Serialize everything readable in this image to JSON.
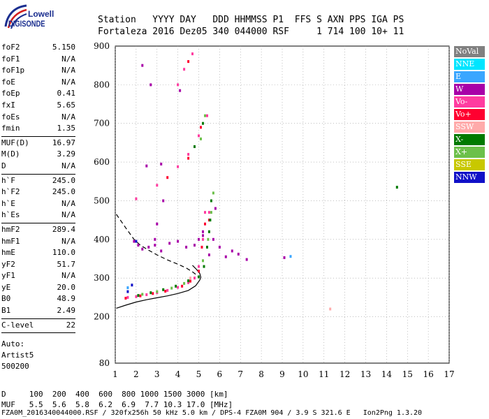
{
  "logo": {
    "line1": "Lowell",
    "line2": "DIGISONDE"
  },
  "header": {
    "line1": "Station   YYYY DAY   DDD HHMMSS P1  FFS S AXN PPS IGA PS",
    "line2": "Fortaleza 2016 Dez05 340 044000 RSF     1 714 100 10+ 11"
  },
  "params": {
    "group1": [
      {
        "name": "foF2",
        "value": "5.150"
      },
      {
        "name": "foF1",
        "value": "N/A"
      },
      {
        "name": "foF1p",
        "value": "N/A"
      },
      {
        "name": "foE",
        "value": "N/A"
      },
      {
        "name": "foEp",
        "value": "0.41"
      },
      {
        "name": "fxI",
        "value": "5.65"
      },
      {
        "name": "foEs",
        "value": "N/A"
      },
      {
        "name": "fmin",
        "value": "1.35"
      }
    ],
    "group2": [
      {
        "name": "MUF(D)",
        "value": "16.97"
      },
      {
        "name": "M(D)",
        "value": "3.29"
      },
      {
        "name": "D",
        "value": "N/A"
      }
    ],
    "group3": [
      {
        "name": "h`F",
        "value": "245.0"
      },
      {
        "name": "h`F2",
        "value": "245.0"
      },
      {
        "name": "h`E",
        "value": "N/A"
      },
      {
        "name": "h`Es",
        "value": "N/A"
      }
    ],
    "group4": [
      {
        "name": "hmF2",
        "value": "289.4"
      },
      {
        "name": "hmF1",
        "value": "N/A"
      },
      {
        "name": "hmE",
        "value": "110.0"
      },
      {
        "name": "yF2",
        "value": "51.7"
      },
      {
        "name": "yF1",
        "value": "N/A"
      },
      {
        "name": "yE",
        "value": "20.0"
      },
      {
        "name": "B0",
        "value": "48.9"
      },
      {
        "name": "B1",
        "value": "2.49"
      }
    ],
    "group5": [
      {
        "name": "C-level",
        "value": "22"
      }
    ]
  },
  "auto": {
    "line1": "Auto:",
    "line2": "Artist5",
    "line3": "500200"
  },
  "dmuf": {
    "d_line": "D     100  200  400  600  800 1000 1500 3000 [km]",
    "muf_line": "MUF   5.5  5.6  5.8  6.2  6.9  7.7 10.3 17.0 [MHz]"
  },
  "footer": "FZA0M_2016340044000.RSF / 320fx256h 50 kHz 5.0 km / DPS-4 FZA0M 904 / 3.9 S 321.6 E   Ion2Png 1.3.20",
  "legend": [
    {
      "label": "NoVal",
      "color": "#808080"
    },
    {
      "label": "NNE",
      "color": "#00e5ff"
    },
    {
      "label": "E",
      "color": "#3aa6ff"
    },
    {
      "label": "W",
      "color": "#a800a8"
    },
    {
      "label": "Vo-",
      "color": "#ff3ca0"
    },
    {
      "label": "Vo+",
      "color": "#ff0030"
    },
    {
      "label": "SSW",
      "color": "#ffaaaa"
    },
    {
      "label": "X-",
      "color": "#007a00"
    },
    {
      "label": "X+",
      "color": "#6cc04a"
    },
    {
      "label": "SSE",
      "color": "#c8c800"
    },
    {
      "label": "NNW",
      "color": "#1010c8"
    }
  ],
  "chart_data": {
    "type": "scatter",
    "title": "",
    "xlabel": "",
    "ylabel": "",
    "xlim": [
      1,
      17
    ],
    "ylim": [
      80,
      900
    ],
    "x_ticks": [
      1,
      2,
      3,
      4,
      5,
      6,
      7,
      8,
      9,
      10,
      11,
      12,
      13,
      14,
      15,
      16,
      17
    ],
    "y_ticks": [
      80,
      200,
      300,
      400,
      500,
      600,
      700,
      800,
      900
    ],
    "grid": true,
    "series": [
      {
        "name": "Vo-",
        "color": "#ff3ca0",
        "points": [
          [
            1.6,
            250
          ],
          [
            2.0,
            252
          ],
          [
            2.5,
            257
          ],
          [
            3.0,
            262
          ],
          [
            3.5,
            268
          ],
          [
            4.0,
            276
          ],
          [
            4.5,
            288
          ],
          [
            4.8,
            300
          ],
          [
            5.0,
            330
          ],
          [
            5.2,
            400
          ],
          [
            5.3,
            470
          ],
          [
            5.5,
            470
          ],
          [
            2.0,
            505
          ],
          [
            3.0,
            540
          ],
          [
            4.0,
            588
          ],
          [
            4.5,
            620
          ],
          [
            5.0,
            668
          ],
          [
            5.4,
            720
          ],
          [
            4.0,
            800
          ],
          [
            4.3,
            840
          ],
          [
            4.7,
            880
          ]
        ]
      },
      {
        "name": "Vo+",
        "color": "#ff0030",
        "points": [
          [
            1.5,
            248
          ],
          [
            2.2,
            254
          ],
          [
            2.8,
            260
          ],
          [
            3.4,
            266
          ],
          [
            4.2,
            279
          ],
          [
            4.6,
            292
          ],
          [
            5.0,
            318
          ],
          [
            5.15,
            380
          ],
          [
            5.3,
            440
          ],
          [
            5.5,
            450
          ],
          [
            3.5,
            560
          ],
          [
            4.5,
            610
          ],
          [
            5.1,
            690
          ],
          [
            4.5,
            860
          ]
        ]
      },
      {
        "name": "W",
        "color": "#a800a8",
        "points": [
          [
            1.9,
            395
          ],
          [
            2.1,
            385
          ],
          [
            2.3,
            375
          ],
          [
            2.6,
            380
          ],
          [
            2.9,
            385
          ],
          [
            3.2,
            370
          ],
          [
            3.6,
            390
          ],
          [
            4.0,
            395
          ],
          [
            4.4,
            380
          ],
          [
            4.8,
            385
          ],
          [
            5.0,
            400
          ],
          [
            5.2,
            410
          ],
          [
            5.5,
            360
          ],
          [
            5.7,
            400
          ],
          [
            6.0,
            380
          ],
          [
            6.3,
            355
          ],
          [
            6.6,
            370
          ],
          [
            6.9,
            362
          ],
          [
            7.3,
            348
          ],
          [
            3.3,
            500
          ],
          [
            2.9,
            400
          ],
          [
            3.0,
            440
          ],
          [
            2.7,
            800
          ],
          [
            2.3,
            850
          ],
          [
            3.2,
            595
          ],
          [
            2.5,
            590
          ],
          [
            5.2,
            420
          ],
          [
            5.8,
            480
          ],
          [
            9.1,
            353
          ],
          [
            4.1,
            785
          ]
        ]
      },
      {
        "name": "X-",
        "color": "#007a00",
        "points": [
          [
            2.1,
            255
          ],
          [
            2.7,
            262
          ],
          [
            3.3,
            270
          ],
          [
            3.9,
            279
          ],
          [
            4.5,
            293
          ],
          [
            5.0,
            303
          ],
          [
            5.25,
            330
          ],
          [
            5.4,
            380
          ],
          [
            5.5,
            420
          ],
          [
            5.55,
            450
          ],
          [
            5.6,
            500
          ],
          [
            4.8,
            640
          ],
          [
            5.2,
            700
          ],
          [
            14.5,
            535
          ]
        ]
      },
      {
        "name": "X+",
        "color": "#6cc04a",
        "points": [
          [
            2.3,
            258
          ],
          [
            3.0,
            265
          ],
          [
            3.7,
            274
          ],
          [
            4.3,
            286
          ],
          [
            5.2,
            345
          ],
          [
            5.45,
            400
          ],
          [
            5.6,
            470
          ],
          [
            5.7,
            520
          ],
          [
            5.1,
            660
          ],
          [
            5.3,
            720
          ]
        ]
      },
      {
        "name": "SSW",
        "color": "#ffaaaa",
        "points": [
          [
            11.3,
            220
          ],
          [
            4.6,
            300
          ]
        ]
      },
      {
        "name": "E",
        "color": "#3aa6ff",
        "points": [
          [
            9.4,
            356
          ],
          [
            1.6,
            275
          ]
        ]
      },
      {
        "name": "NNW",
        "color": "#1010c8",
        "points": [
          [
            1.6,
            265
          ],
          [
            2.0,
            395
          ],
          [
            1.8,
            282
          ]
        ]
      }
    ],
    "curves": [
      {
        "name": "profile-solid",
        "style": "solid",
        "points": [
          [
            1.05,
            222
          ],
          [
            1.5,
            230
          ],
          [
            2.0,
            238
          ],
          [
            2.5,
            244
          ],
          [
            3.0,
            249
          ],
          [
            3.5,
            254
          ],
          [
            4.0,
            260
          ],
          [
            4.5,
            268
          ],
          [
            4.85,
            280
          ],
          [
            5.05,
            295
          ],
          [
            5.1,
            302
          ],
          [
            5.05,
            312
          ],
          [
            4.9,
            322
          ],
          [
            4.7,
            333
          ]
        ]
      },
      {
        "name": "profile-dashed",
        "style": "dashed",
        "points": [
          [
            1.05,
            465
          ],
          [
            1.5,
            430
          ],
          [
            1.9,
            400
          ],
          [
            2.2,
            385
          ],
          [
            2.6,
            372
          ],
          [
            3.0,
            360
          ],
          [
            3.5,
            347
          ],
          [
            4.0,
            336
          ],
          [
            4.4,
            326
          ],
          [
            4.7,
            316
          ],
          [
            4.9,
            308
          ],
          [
            5.0,
            302
          ]
        ]
      }
    ]
  }
}
